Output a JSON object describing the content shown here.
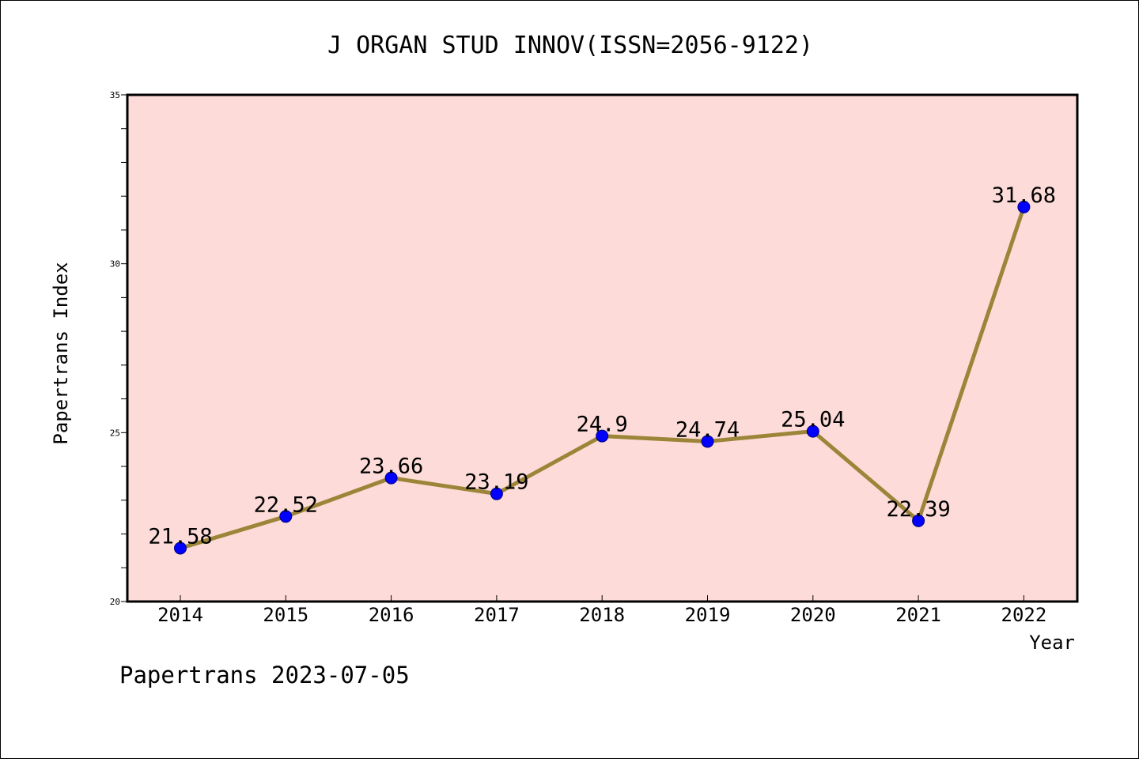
{
  "chart_data": {
    "type": "line",
    "title": "J ORGAN STUD INNOV(ISSN=2056-9122)",
    "xlabel": "Year",
    "ylabel": "Papertrans Index",
    "ylim": [
      20,
      35
    ],
    "yticks": [
      "20",
      "25",
      "30",
      "35"
    ],
    "categories": [
      "2014",
      "2015",
      "2016",
      "2017",
      "2018",
      "2019",
      "2020",
      "2021",
      "2022"
    ],
    "values": [
      21.58,
      22.52,
      23.66,
      23.19,
      24.9,
      24.74,
      25.04,
      22.39,
      31.68
    ],
    "data_labels": [
      "21.58",
      "22.52",
      "23.66",
      "23.19",
      "24.9",
      "24.74",
      "25.04",
      "22.39",
      "31.68"
    ],
    "grid": false,
    "colors": {
      "plot_background": "#fddbd8",
      "line": "#9c8539",
      "marker": "#0000ff"
    }
  },
  "footer": {
    "text": "Papertrans 2023-07-05"
  }
}
